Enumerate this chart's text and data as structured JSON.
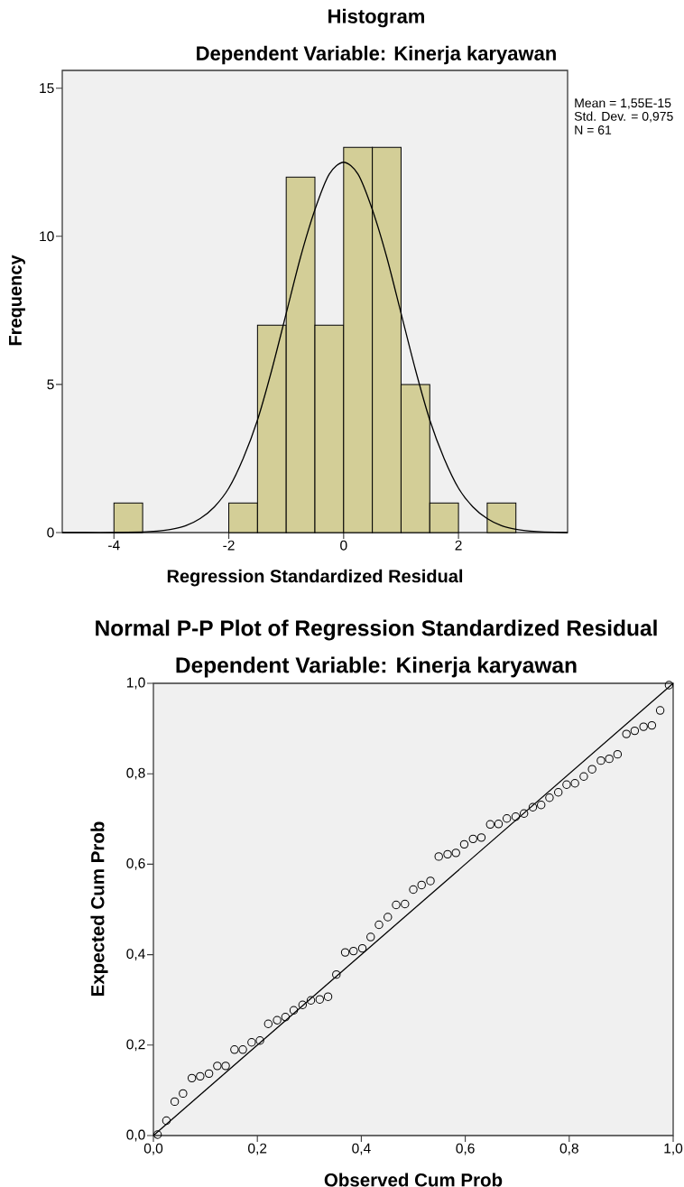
{
  "chart_data": [
    {
      "type": "histogram",
      "title": "Histogram",
      "subtitle": "Dependent Variable: Kinerja karyawan",
      "xlabel": "Regression Standardized Residual",
      "ylabel": "Frequency",
      "bins": [
        -4,
        -3.5,
        -3,
        -2.5,
        -2,
        -1.5,
        -1,
        -0.5,
        0,
        0.5,
        1,
        1.5,
        2,
        2.5,
        3
      ],
      "series": [
        {
          "color": "#d3ce97",
          "values": [
            1,
            0,
            0,
            0,
            1,
            7,
            12,
            7,
            13,
            13,
            5,
            1,
            0,
            1
          ]
        },
        {
          "type": "line",
          "color": "#000000",
          "x": [
            -4.9,
            -4.5,
            -4,
            -3.5,
            -3.25,
            -3,
            -2.75,
            -2.5,
            -2.25,
            -2,
            -1.75,
            -1.5,
            -1.25,
            -1,
            -0.75,
            -0.5,
            -0.25,
            0,
            0.25,
            0.5,
            0.75,
            1,
            1.25,
            1.5,
            1.75,
            2,
            2.25,
            2.5,
            2.75,
            3,
            3.25,
            3.5,
            3.9
          ],
          "values": [
            0,
            0,
            0,
            0.02,
            0.05,
            0.11,
            0.23,
            0.47,
            0.87,
            1.5,
            2.5,
            3.8,
            5.5,
            7.4,
            9.3,
            10.9,
            12.1,
            12.5,
            12.1,
            10.9,
            9.3,
            7.4,
            5.5,
            3.8,
            2.5,
            1.5,
            0.87,
            0.47,
            0.23,
            0.11,
            0.05,
            0.02,
            0
          ]
        }
      ],
      "xlim": [
        -4.9,
        3.9
      ],
      "ylim": [
        0,
        15.6
      ],
      "xticks": [
        -4,
        -2,
        0,
        2
      ],
      "yticks": [
        0,
        5,
        10,
        15
      ],
      "annotations": [
        "Mean = 1,55E-15",
        "Std. Dev. = 0,975",
        "N = 61"
      ]
    },
    {
      "type": "scatter",
      "title": "Normal P-P Plot of Regression Standardized Residual",
      "subtitle": "Dependent Variable: Kinerja karyawan",
      "xlabel": "Observed Cum Prob",
      "ylabel": "Expected Cum Prob",
      "series": [
        {
          "color": "#000000",
          "marker": "circle",
          "x": [
            0.008,
            0.025,
            0.041,
            0.057,
            0.074,
            0.09,
            0.107,
            0.123,
            0.139,
            0.156,
            0.172,
            0.189,
            0.205,
            0.221,
            0.238,
            0.254,
            0.27,
            0.287,
            0.303,
            0.32,
            0.336,
            0.352,
            0.369,
            0.385,
            0.402,
            0.418,
            0.434,
            0.451,
            0.467,
            0.484,
            0.5,
            0.516,
            0.533,
            0.549,
            0.566,
            0.582,
            0.598,
            0.615,
            0.631,
            0.648,
            0.664,
            0.68,
            0.697,
            0.713,
            0.73,
            0.746,
            0.762,
            0.779,
            0.795,
            0.811,
            0.828,
            0.844,
            0.861,
            0.877,
            0.893,
            0.91,
            0.926,
            0.943,
            0.959,
            0.975,
            0.992
          ],
          "values": [
            0.002,
            0.033,
            0.075,
            0.093,
            0.127,
            0.131,
            0.137,
            0.154,
            0.154,
            0.19,
            0.19,
            0.206,
            0.21,
            0.247,
            0.255,
            0.262,
            0.277,
            0.289,
            0.299,
            0.301,
            0.307,
            0.356,
            0.405,
            0.408,
            0.414,
            0.439,
            0.466,
            0.483,
            0.51,
            0.512,
            0.544,
            0.554,
            0.563,
            0.617,
            0.622,
            0.625,
            0.644,
            0.656,
            0.659,
            0.688,
            0.689,
            0.701,
            0.705,
            0.712,
            0.726,
            0.731,
            0.747,
            0.759,
            0.776,
            0.779,
            0.794,
            0.81,
            0.829,
            0.833,
            0.843,
            0.888,
            0.895,
            0.904,
            0.907,
            0.94,
            0.996
          ]
        },
        {
          "type": "line",
          "color": "#000000",
          "x": [
            0,
            1
          ],
          "values": [
            0,
            1
          ]
        }
      ],
      "xlim": [
        0,
        1
      ],
      "ylim": [
        0,
        1
      ],
      "xticks": [
        {
          "value": 0,
          "label": "0,0"
        },
        {
          "value": 0.2,
          "label": "0,2"
        },
        {
          "value": 0.4,
          "label": "0,4"
        },
        {
          "value": 0.6,
          "label": "0,6"
        },
        {
          "value": 0.8,
          "label": "0,8"
        },
        {
          "value": 1,
          "label": "1,0"
        }
      ],
      "yticks": [
        {
          "value": 0,
          "label": "0,0"
        },
        {
          "value": 0.2,
          "label": "0,2"
        },
        {
          "value": 0.4,
          "label": "0,4"
        },
        {
          "value": 0.6,
          "label": "0,6"
        },
        {
          "value": 0.8,
          "label": "0,8"
        },
        {
          "value": 1,
          "label": "1,0"
        }
      ]
    }
  ]
}
